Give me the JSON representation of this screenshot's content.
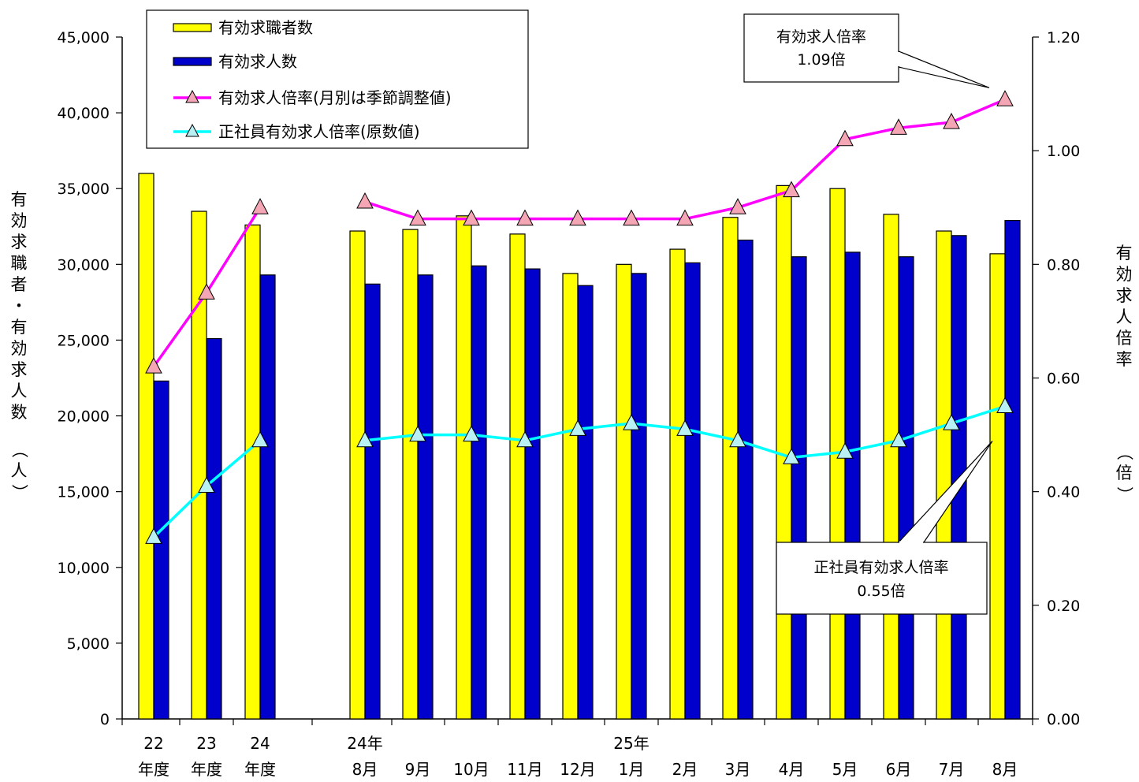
{
  "chart_data": {
    "type": "bar",
    "categories": [
      {
        "line1": "22",
        "line2": "年度"
      },
      {
        "line1": "23",
        "line2": "年度"
      },
      {
        "line1": "24",
        "line2": "年度"
      },
      {
        "line1": "24年",
        "line2": "8月"
      },
      {
        "line1": "",
        "line2": "9月"
      },
      {
        "line1": "",
        "line2": "10月"
      },
      {
        "line1": "",
        "line2": "11月"
      },
      {
        "line1": "",
        "line2": "12月"
      },
      {
        "line1": "25年",
        "line2": "1月"
      },
      {
        "line1": "",
        "line2": "2月"
      },
      {
        "line1": "",
        "line2": "3月"
      },
      {
        "line1": "",
        "line2": "4月"
      },
      {
        "line1": "",
        "line2": "5月"
      },
      {
        "line1": "",
        "line2": "6月"
      },
      {
        "line1": "",
        "line2": "7月"
      },
      {
        "line1": "",
        "line2": "8月"
      }
    ],
    "series": [
      {
        "name": "有効求職者数",
        "type": "bar",
        "axis": "left",
        "color": "#FFFF00",
        "values": [
          36000,
          33500,
          32600,
          32200,
          32300,
          33200,
          32000,
          29400,
          30000,
          31000,
          33100,
          35200,
          35000,
          33300,
          32200,
          30700
        ]
      },
      {
        "name": "有効求人数",
        "type": "bar",
        "axis": "left",
        "color": "#0000CC",
        "values": [
          22300,
          25100,
          29300,
          28700,
          29300,
          29900,
          29700,
          28600,
          29400,
          30100,
          31600,
          30500,
          30800,
          30500,
          31900,
          32900
        ]
      },
      {
        "name": "有効求人倍率(月別は季節調整値)",
        "type": "line",
        "axis": "right",
        "color": "#FF00FF",
        "marker_fill": "#F4A6B4",
        "values": [
          0.62,
          0.75,
          0.9,
          0.91,
          0.88,
          0.88,
          0.88,
          0.88,
          0.88,
          0.88,
          0.9,
          0.93,
          1.02,
          1.04,
          1.05,
          1.09
        ]
      },
      {
        "name": "正社員有効求人倍率(原数値)",
        "type": "line",
        "axis": "right",
        "color": "#00FFFF",
        "marker_fill": "#B8F0F4",
        "values": [
          0.32,
          0.41,
          0.49,
          0.49,
          0.5,
          0.5,
          0.49,
          0.51,
          0.52,
          0.51,
          0.49,
          0.46,
          0.47,
          0.49,
          0.52,
          0.55
        ]
      }
    ],
    "y_left": {
      "label": "有効求職者・有効求人数（人）",
      "ylim": [
        0,
        45000
      ],
      "ticks": [
        "0",
        "5,000",
        "10,000",
        "15,000",
        "20,000",
        "25,000",
        "30,000",
        "35,000",
        "40,000",
        "45,000"
      ]
    },
    "y_right": {
      "label": "有効求人倍率（倍）",
      "ylim": [
        0,
        1.2
      ],
      "ticks": [
        "0.00",
        "0.20",
        "0.40",
        "0.60",
        "0.80",
        "1.00",
        "1.20"
      ]
    },
    "annotations": [
      {
        "line1": "有効求人倍率",
        "line2": "1.09倍",
        "series": 2,
        "point": 15,
        "placement": "top-right"
      },
      {
        "line1": "正社員有効求人倍率",
        "line2": "0.55倍",
        "series": 3,
        "point": 15,
        "placement": "bottom-right"
      }
    ],
    "legend_position": "top-left",
    "grid": false
  }
}
